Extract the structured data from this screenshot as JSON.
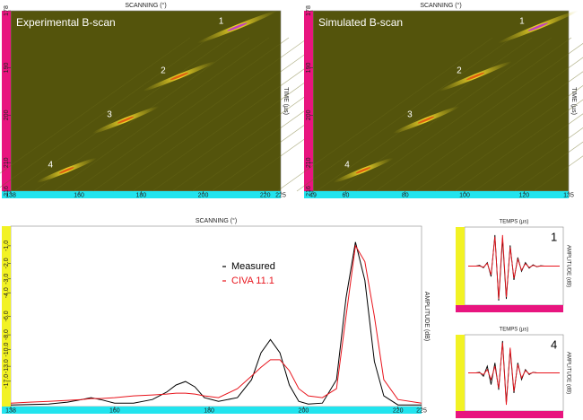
{
  "chart_data": [
    {
      "type": "bscan",
      "title": "Experimental B-scan",
      "xlabel": "SCANNING (°)",
      "ylabel": "TIME (µs)",
      "xlim": [
        138,
        225
      ],
      "xticks": [
        138,
        160,
        180,
        200,
        220,
        225
      ],
      "ylim": [
        178,
        216
      ],
      "yticks": [
        178,
        190,
        200,
        210,
        216
      ],
      "echoes": [
        {
          "label": "1",
          "x": 211,
          "y": 181.4
        },
        {
          "label": "2",
          "x": 192.3,
          "y": 191.8
        },
        {
          "label": "3",
          "x": 175,
          "y": 201
        },
        {
          "label": "4",
          "x": 156,
          "y": 211.6
        }
      ]
    },
    {
      "type": "line",
      "xlabel": "SCANNING (°)",
      "ylabel": "AMPLITUDE (dB)",
      "yscale": "amplitude",
      "xlim": [
        138,
        225
      ],
      "xticks": [
        138,
        160,
        180,
        200,
        220,
        225
      ],
      "ylim": [
        -60,
        0
      ],
      "yticks": [
        {
          "value": -17,
          "label": "-17.0"
        },
        {
          "value": -13,
          "label": "-13.0"
        },
        {
          "value": -10,
          "label": "-10.0"
        },
        {
          "value": -8,
          "label": "-8.0"
        },
        {
          "value": -6,
          "label": "-6.0"
        },
        {
          "value": -4,
          "label": "-4.0"
        },
        {
          "value": -3,
          "label": "-3.0"
        },
        {
          "value": -2,
          "label": "-2.0"
        },
        {
          "value": -1,
          "label": "-1.0"
        }
      ],
      "x": [
        138,
        142,
        146,
        150,
        153,
        155,
        157,
        160,
        164,
        168,
        171,
        173,
        175,
        177,
        179,
        182,
        186,
        189,
        191,
        193,
        195,
        197,
        199,
        201,
        204,
        207,
        209,
        211,
        213,
        215,
        217,
        220,
        225
      ],
      "series": [
        {
          "name": "Measured",
          "color": "#000000",
          "values": [
            -40,
            -38.4,
            -36.5,
            -32.0,
            -28.0,
            -26.0,
            -28.0,
            -34.0,
            -34.0,
            -28.0,
            -21.9,
            -18.4,
            -17.1,
            -19.2,
            -26.0,
            -30.5,
            -26.0,
            -16.5,
            -10.5,
            -8.6,
            -10.5,
            -18.4,
            -30.5,
            -36.5,
            -34.0,
            -16.5,
            -4.4,
            -0.8,
            -3.1,
            -12.0,
            -24.4,
            -40,
            -40
          ]
        },
        {
          "name": "CIVA 11.1",
          "color": "#e8141c",
          "values": [
            -34.0,
            -32.0,
            -30.5,
            -29.1,
            -28.0,
            -26.9,
            -26.9,
            -26.0,
            -24.4,
            -23.7,
            -23.1,
            -22.5,
            -22.5,
            -23.1,
            -24.4,
            -26.0,
            -20.0,
            -15.4,
            -13.2,
            -11.7,
            -11.7,
            -14.0,
            -20.0,
            -24.4,
            -26.0,
            -20.0,
            -6.0,
            -1.0,
            -1.9,
            -6.0,
            -16.5,
            -28.0,
            -34.0
          ]
        }
      ]
    },
    {
      "type": "bscan",
      "title": "Simulated B-scan",
      "xlabel": "SCANNING (°)",
      "ylabel": "TIME (µs)",
      "xlim": [
        49,
        135
      ],
      "xticks": [
        49,
        60,
        80,
        100,
        120,
        135
      ],
      "ylim": [
        178,
        216
      ],
      "yticks": [
        178,
        190,
        200,
        210,
        216
      ],
      "echoes": [
        {
          "label": "1",
          "x": 124.7,
          "y": 181.4
        },
        {
          "label": "2",
          "x": 103.6,
          "y": 191.8
        },
        {
          "label": "3",
          "x": 87,
          "y": 201
        },
        {
          "label": "4",
          "x": 65.9,
          "y": 211.6
        }
      ]
    },
    {
      "type": "waveform",
      "label": "1",
      "xlabel": "TEMPS (µs)",
      "ylabel": "AMPLITUDE (dB)",
      "ylim": [
        -1,
        1
      ],
      "series": [
        {
          "name": "Measured",
          "color": "#000000",
          "values": [
            0,
            0,
            0,
            0.02,
            -0.05,
            0.1,
            -0.3,
            0.9,
            -1.0,
            0.8,
            -0.95,
            0.6,
            -0.4,
            0.25,
            -0.15,
            0.1,
            -0.06,
            0.04,
            -0.02,
            0.01,
            0,
            0,
            0,
            0,
            0
          ]
        },
        {
          "name": "CIVA 11.1",
          "color": "#e8141c",
          "values": [
            0,
            0,
            0,
            0,
            -0.03,
            0.08,
            -0.25,
            0.85,
            -0.95,
            0.9,
            -0.9,
            0.55,
            -0.35,
            0.2,
            -0.12,
            0.07,
            -0.04,
            0.02,
            -0.01,
            0,
            0,
            0,
            0,
            0,
            0
          ]
        }
      ]
    },
    {
      "type": "waveform",
      "label": "4",
      "xlabel": "TEMPS (µs)",
      "ylabel": "AMPLITUDE (dB)",
      "ylim": [
        -1,
        1
      ],
      "series": [
        {
          "name": "Measured",
          "color": "#000000",
          "values": [
            0,
            0,
            0,
            0.02,
            -0.1,
            0.2,
            -0.35,
            0.3,
            -0.5,
            0.95,
            -0.9,
            0.7,
            -0.6,
            0.3,
            -0.2,
            0.1,
            -0.05,
            0.02,
            0,
            0,
            0,
            0,
            0,
            0,
            0
          ]
        },
        {
          "name": "CIVA 11.1",
          "color": "#e8141c",
          "values": [
            0,
            0,
            0,
            0,
            -0.05,
            0.1,
            -0.2,
            0.2,
            -0.45,
            0.9,
            -0.95,
            0.75,
            -0.55,
            0.25,
            -0.15,
            0.07,
            -0.03,
            0.01,
            0,
            0,
            0,
            0,
            0,
            0,
            0
          ]
        }
      ]
    }
  ]
}
